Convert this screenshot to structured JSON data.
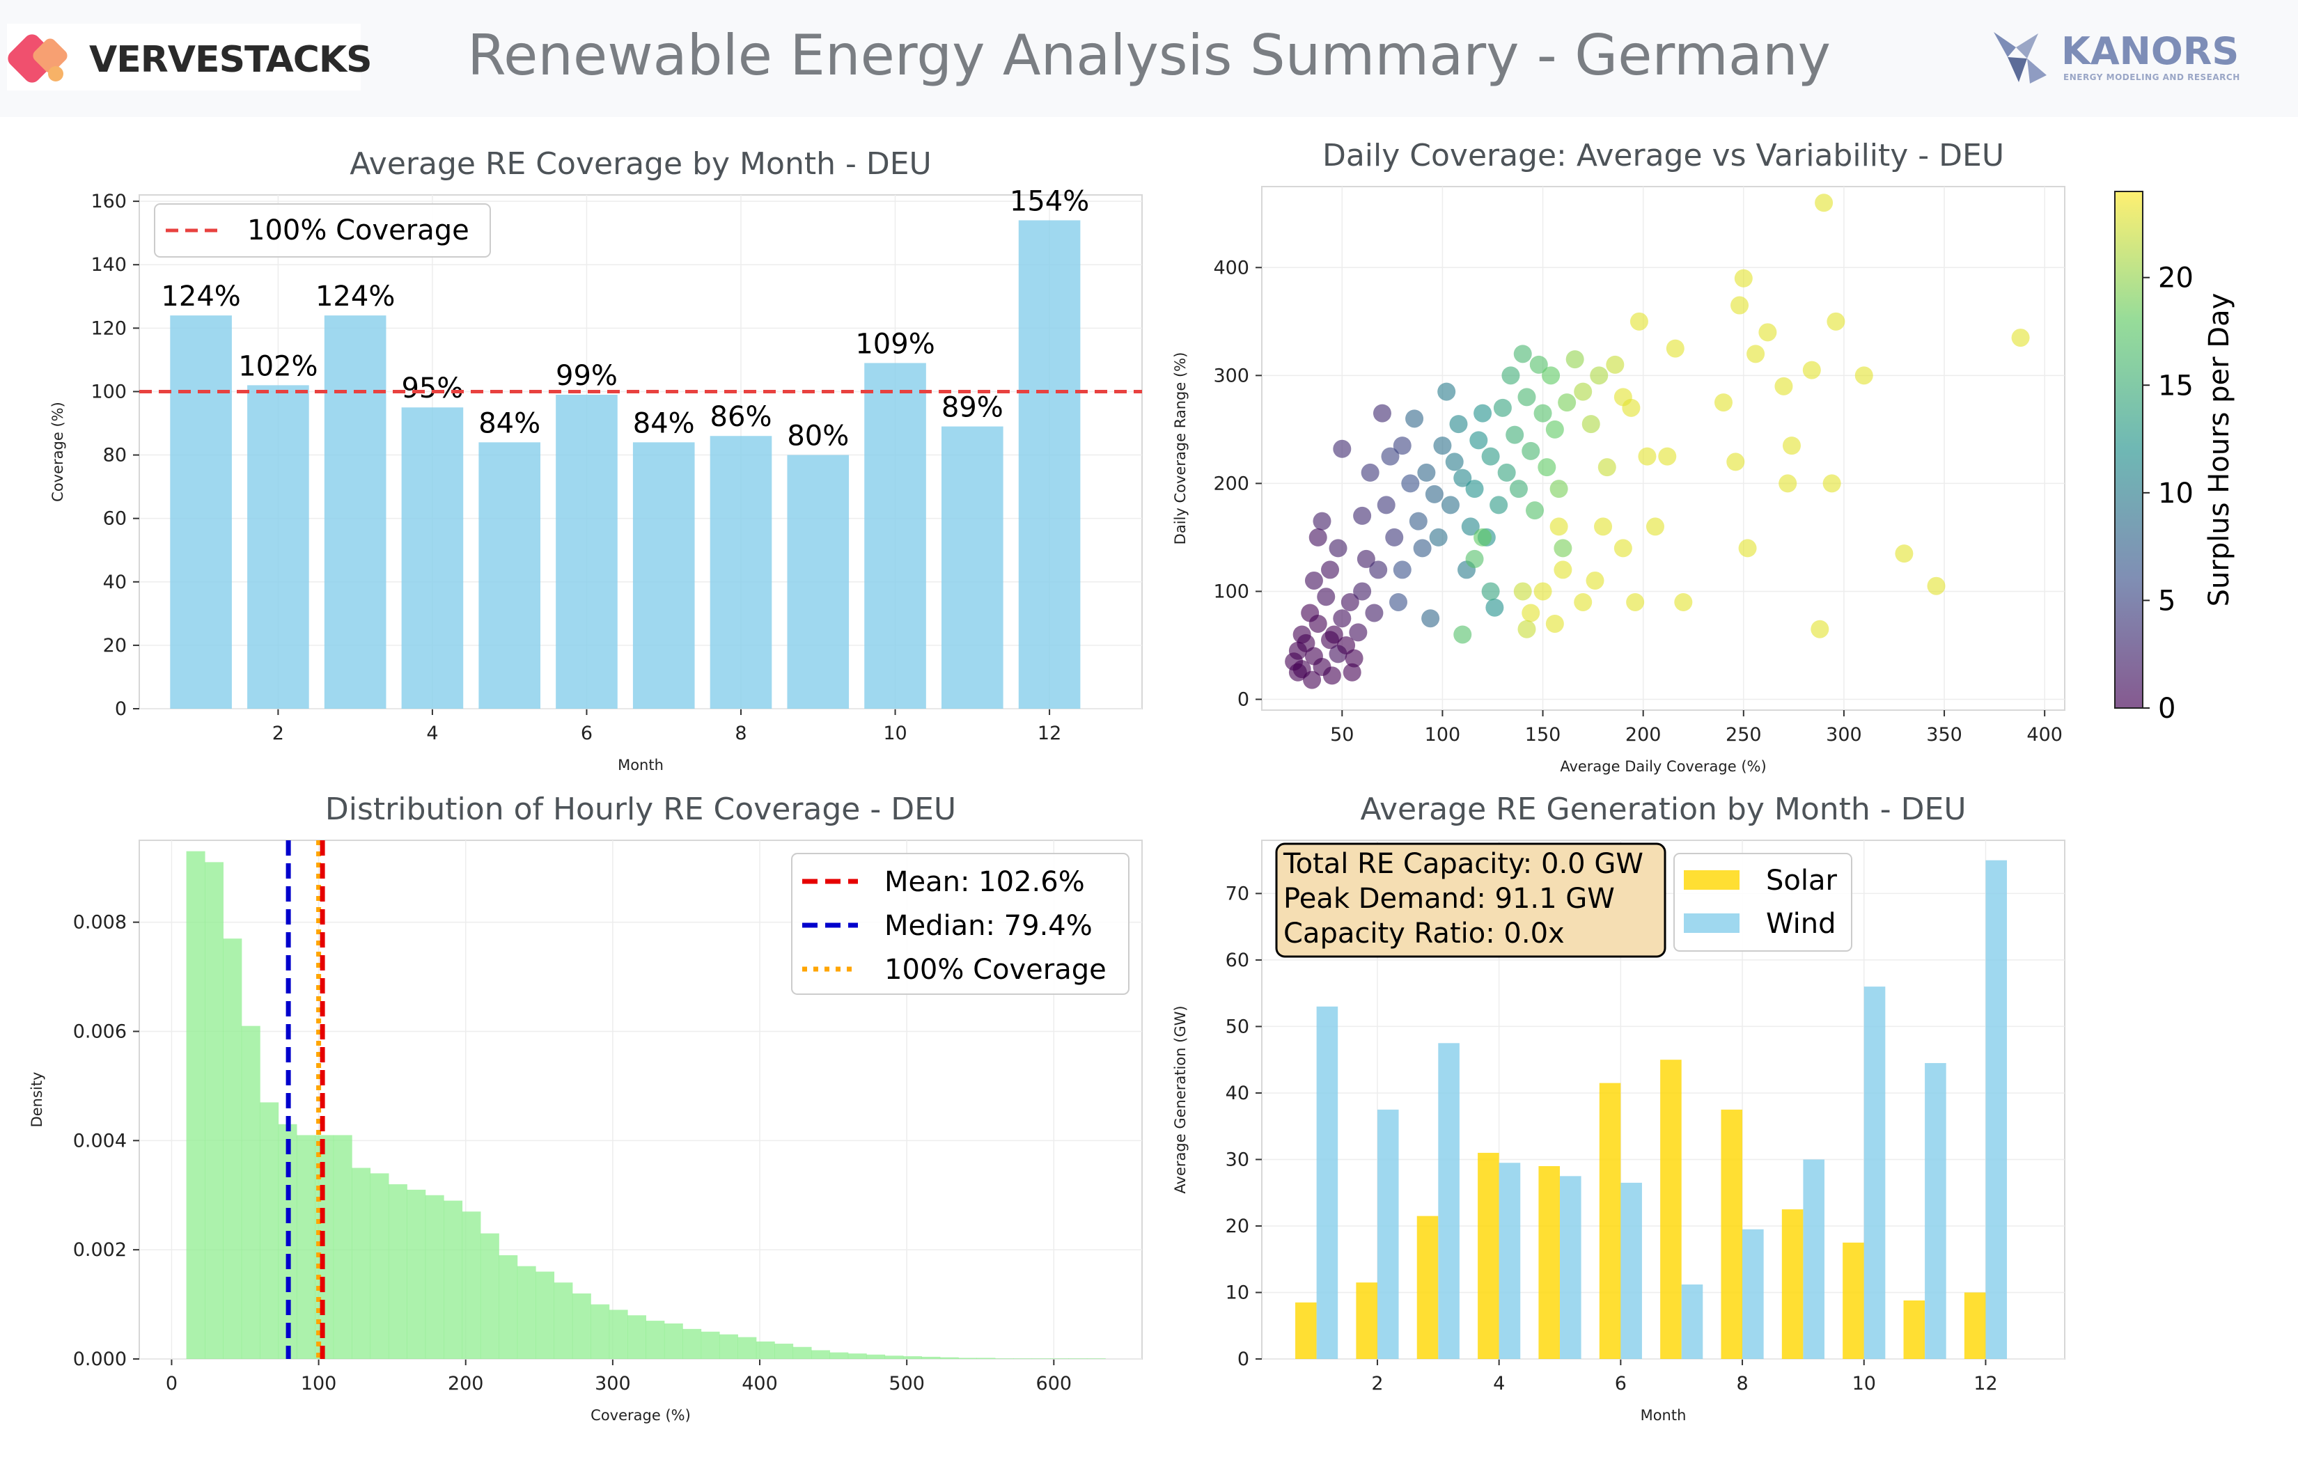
{
  "header": {
    "title": "Renewable Energy Analysis Summary - Germany",
    "logo_left": "VERVESTACKS",
    "logo_right": "KANORS",
    "logo_right_sub": "ENERGY MODELING AND RESEARCH"
  },
  "colors": {
    "bar_blue": "#87ceeb",
    "hist_green": "#90ee90",
    "solar": "#ffd700",
    "wind": "#87ceeb",
    "red_line": "#e8413f",
    "blue_line": "#0000cc",
    "orange_line": "#ffa500",
    "title_gray": "#4d5358"
  },
  "chart_data": [
    {
      "type": "bar",
      "title": "Average RE Coverage by Month - DEU",
      "xlabel": "Month",
      "ylabel": "Coverage (%)",
      "categories": [
        1,
        2,
        3,
        4,
        5,
        6,
        7,
        8,
        9,
        10,
        11,
        12
      ],
      "values": [
        124,
        102,
        124,
        95,
        84,
        99,
        84,
        86,
        80,
        109,
        89,
        154
      ],
      "data_labels": [
        "124%",
        "102%",
        "124%",
        "95%",
        "84%",
        "99%",
        "84%",
        "86%",
        "80%",
        "109%",
        "89%",
        "154%"
      ],
      "xticks": [
        2,
        4,
        6,
        8,
        10,
        12
      ],
      "xlim": [
        0.2,
        13.2
      ],
      "yticks": [
        0,
        20,
        40,
        60,
        80,
        100,
        120,
        140,
        160
      ],
      "ylim": [
        0,
        162
      ],
      "reference_line": {
        "value": 100,
        "label": "100% Coverage"
      },
      "legend_position": "top-left"
    },
    {
      "type": "scatter",
      "title": "Daily Coverage: Average vs Variability - DEU",
      "xlabel": "Average Daily Coverage (%)",
      "ylabel": "Daily Coverage Range (%)",
      "xticks": [
        50,
        100,
        150,
        200,
        250,
        300,
        350,
        400
      ],
      "xlim": [
        10,
        410
      ],
      "yticks": [
        0,
        100,
        200,
        300,
        400
      ],
      "ylim": [
        -10,
        475
      ],
      "colorbar": {
        "label": "Surplus Hours per Day",
        "ticks": [
          0,
          5,
          10,
          15,
          20
        ],
        "range": [
          0,
          24
        ],
        "colormap": "viridis"
      },
      "points": [
        [
          28,
          45,
          0
        ],
        [
          32,
          52,
          0
        ],
        [
          36,
          40,
          0
        ],
        [
          30,
          60,
          0
        ],
        [
          40,
          30,
          0
        ],
        [
          44,
          55,
          0
        ],
        [
          26,
          35,
          0
        ],
        [
          38,
          70,
          0
        ],
        [
          48,
          42,
          1
        ],
        [
          52,
          50,
          0
        ],
        [
          34,
          80,
          0
        ],
        [
          42,
          95,
          1
        ],
        [
          46,
          60,
          0
        ],
        [
          56,
          38,
          0
        ],
        [
          30,
          28,
          0
        ],
        [
          50,
          75,
          1
        ],
        [
          58,
          62,
          1
        ],
        [
          36,
          110,
          1
        ],
        [
          44,
          120,
          1
        ],
        [
          54,
          90,
          1
        ],
        [
          40,
          165,
          2
        ],
        [
          48,
          140,
          2
        ],
        [
          60,
          100,
          2
        ],
        [
          38,
          150,
          1
        ],
        [
          62,
          130,
          2
        ],
        [
          66,
          80,
          2
        ],
        [
          28,
          25,
          0
        ],
        [
          35,
          18,
          0
        ],
        [
          45,
          22,
          0
        ],
        [
          55,
          25,
          0
        ],
        [
          50,
          232,
          3
        ],
        [
          70,
          265,
          3
        ],
        [
          60,
          170,
          3
        ],
        [
          64,
          210,
          4
        ],
        [
          72,
          180,
          4
        ],
        [
          76,
          150,
          4
        ],
        [
          80,
          235,
          5
        ],
        [
          68,
          120,
          3
        ],
        [
          84,
          200,
          6
        ],
        [
          74,
          225,
          5
        ],
        [
          80,
          120,
          6
        ],
        [
          88,
          165,
          7
        ],
        [
          78,
          90,
          6
        ],
        [
          92,
          210,
          8
        ],
        [
          96,
          190,
          8
        ],
        [
          90,
          140,
          7
        ],
        [
          100,
          235,
          9
        ],
        [
          86,
          260,
          8
        ],
        [
          104,
          180,
          9
        ],
        [
          98,
          150,
          9
        ],
        [
          106,
          220,
          10
        ],
        [
          102,
          285,
          10
        ],
        [
          94,
          75,
          8
        ],
        [
          110,
          205,
          11
        ],
        [
          114,
          160,
          11
        ],
        [
          108,
          255,
          11
        ],
        [
          118,
          240,
          12
        ],
        [
          112,
          120,
          10
        ],
        [
          116,
          195,
          12
        ],
        [
          120,
          265,
          12
        ],
        [
          124,
          225,
          13
        ],
        [
          128,
          180,
          13
        ],
        [
          122,
          150,
          12
        ],
        [
          130,
          270,
          14
        ],
        [
          132,
          210,
          14
        ],
        [
          126,
          85,
          12
        ],
        [
          134,
          300,
          15
        ],
        [
          136,
          245,
          15
        ],
        [
          138,
          195,
          15
        ],
        [
          140,
          320,
          16
        ],
        [
          142,
          280,
          16
        ],
        [
          144,
          230,
          16
        ],
        [
          146,
          175,
          17
        ],
        [
          148,
          310,
          17
        ],
        [
          150,
          265,
          17
        ],
        [
          152,
          215,
          18
        ],
        [
          154,
          300,
          18
        ],
        [
          156,
          250,
          18
        ],
        [
          158,
          195,
          19
        ],
        [
          160,
          140,
          19
        ],
        [
          162,
          275,
          19
        ],
        [
          166,
          315,
          20
        ],
        [
          170,
          285,
          21
        ],
        [
          174,
          255,
          21
        ],
        [
          178,
          300,
          21
        ],
        [
          182,
          215,
          22
        ],
        [
          186,
          310,
          22
        ],
        [
          190,
          280,
          23
        ],
        [
          194,
          270,
          23
        ],
        [
          198,
          350,
          23
        ],
        [
          202,
          225,
          23
        ],
        [
          206,
          160,
          23
        ],
        [
          190,
          140,
          23
        ],
        [
          196,
          90,
          23
        ],
        [
          212,
          225,
          23
        ],
        [
          216,
          325,
          23
        ],
        [
          220,
          90,
          23
        ],
        [
          240,
          275,
          23
        ],
        [
          246,
          220,
          23
        ],
        [
          248,
          365,
          23
        ],
        [
          250,
          390,
          23
        ],
        [
          252,
          140,
          23
        ],
        [
          256,
          320,
          23
        ],
        [
          262,
          340,
          23
        ],
        [
          270,
          290,
          23
        ],
        [
          272,
          200,
          23
        ],
        [
          274,
          235,
          23
        ],
        [
          284,
          305,
          23
        ],
        [
          288,
          65,
          23
        ],
        [
          290,
          460,
          23
        ],
        [
          294,
          200,
          23
        ],
        [
          296,
          350,
          23
        ],
        [
          310,
          300,
          23
        ],
        [
          330,
          135,
          23
        ],
        [
          346,
          105,
          23
        ],
        [
          388,
          335,
          23
        ],
        [
          150,
          100,
          23
        ],
        [
          156,
          70,
          23
        ],
        [
          144,
          80,
          23
        ],
        [
          158,
          160,
          23
        ],
        [
          160,
          120,
          23
        ],
        [
          170,
          90,
          23
        ],
        [
          140,
          100,
          22
        ],
        [
          142,
          65,
          22
        ],
        [
          176,
          110,
          23
        ],
        [
          180,
          160,
          23
        ],
        [
          110,
          60,
          17
        ],
        [
          120,
          150,
          18
        ],
        [
          116,
          130,
          17
        ],
        [
          124,
          100,
          14
        ]
      ]
    },
    {
      "type": "histogram",
      "title": "Distribution of Hourly RE Coverage - DEU",
      "xlabel": "Coverage (%)",
      "ylabel": "Density",
      "xticks": [
        0,
        100,
        200,
        300,
        400,
        500,
        600
      ],
      "xlim": [
        -22,
        660
      ],
      "yticks": [
        0.0,
        0.002,
        0.004,
        0.006,
        0.008
      ],
      "ytick_labels": [
        "0.000",
        "0.002",
        "0.004",
        "0.006",
        "0.008"
      ],
      "ylim": [
        0,
        0.0095
      ],
      "bin_start": 10,
      "bin_width": 12.5,
      "densities": [
        0.0093,
        0.0091,
        0.0077,
        0.0061,
        0.0047,
        0.0043,
        0.0041,
        0.0041,
        0.0041,
        0.0035,
        0.0034,
        0.0032,
        0.0031,
        0.003,
        0.0029,
        0.0027,
        0.0023,
        0.0019,
        0.0017,
        0.0016,
        0.0014,
        0.0012,
        0.001,
        0.0009,
        0.0008,
        0.0007,
        0.00065,
        0.00055,
        0.0005,
        0.00045,
        0.0004,
        0.00032,
        0.00028,
        0.00022,
        0.00016,
        0.00012,
        0.0001,
        8e-05,
        6e-05,
        5e-05,
        4e-05,
        3e-05,
        2e-05,
        2e-05,
        1e-05,
        1e-05,
        1e-05,
        1e-05,
        1e-05,
        1e-05
      ],
      "lines": [
        {
          "label": "Mean: 102.6%",
          "value": 102.6,
          "style": "dashed",
          "color": "#e60000"
        },
        {
          "label": "Median: 79.4%",
          "value": 79.4,
          "style": "dashed",
          "color": "#0000cc"
        },
        {
          "label": "100% Coverage",
          "value": 100,
          "style": "dotted",
          "color": "#ffa500"
        }
      ],
      "legend_position": "top-right"
    },
    {
      "type": "bar",
      "title": "Average RE Generation by Month - DEU",
      "xlabel": "Month",
      "ylabel": "Average Generation (GW)",
      "categories": [
        1,
        2,
        3,
        4,
        5,
        6,
        7,
        8,
        9,
        10,
        11,
        12
      ],
      "series": [
        {
          "name": "Solar",
          "values": [
            8.5,
            11.5,
            21.5,
            31,
            29,
            41.5,
            45,
            37.5,
            22.5,
            17.5,
            8.8,
            10
          ]
        },
        {
          "name": "Wind",
          "values": [
            53,
            37.5,
            47.5,
            29.5,
            27.5,
            26.5,
            11.2,
            19.5,
            30,
            56,
            44.5,
            75
          ]
        }
      ],
      "xticks": [
        2,
        4,
        6,
        8,
        10,
        12
      ],
      "xlim": [
        0.1,
        13.3
      ],
      "yticks": [
        0,
        10,
        20,
        30,
        40,
        50,
        60,
        70
      ],
      "ylim": [
        0,
        78
      ],
      "annotation": [
        "Total RE Capacity: 0.0 GW",
        "Peak Demand: 91.1 GW",
        "Capacity Ratio: 0.0x"
      ],
      "legend_position": "top-left"
    }
  ]
}
